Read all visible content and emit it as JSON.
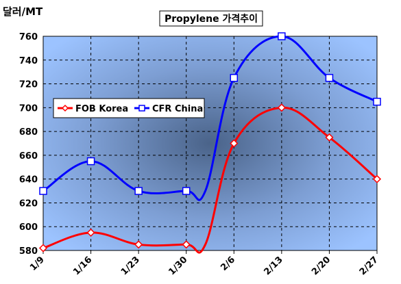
{
  "chart_data": {
    "type": "line",
    "title": "Propylene 가격추이",
    "ylabel": "달러/MT",
    "xlabel": "",
    "categories": [
      "1/9",
      "1/16",
      "1/23",
      "1/30",
      "2/6",
      "2/13",
      "2/20",
      "2/27"
    ],
    "ylim": [
      580,
      760
    ],
    "yticks": [
      580,
      600,
      620,
      640,
      660,
      680,
      700,
      720,
      740,
      760
    ],
    "grid": {
      "horizontal": true,
      "vertical": true,
      "style": "dashed"
    },
    "legend_position": "left",
    "series": [
      {
        "name": "FOB Korea",
        "color": "#ff0000",
        "marker": "diamond",
        "x": [
          0,
          1,
          2,
          3,
          3.4,
          4,
          5,
          6,
          7
        ],
        "values": [
          582,
          595,
          585,
          585,
          585,
          670,
          700,
          675,
          640
        ]
      },
      {
        "name": "CFR China",
        "color": "#0000ff",
        "marker": "square",
        "x": [
          0,
          1,
          2,
          3,
          3.4,
          4,
          5,
          6,
          7
        ],
        "values": [
          630,
          655,
          630,
          630,
          630,
          725,
          760,
          725,
          705
        ]
      }
    ]
  }
}
